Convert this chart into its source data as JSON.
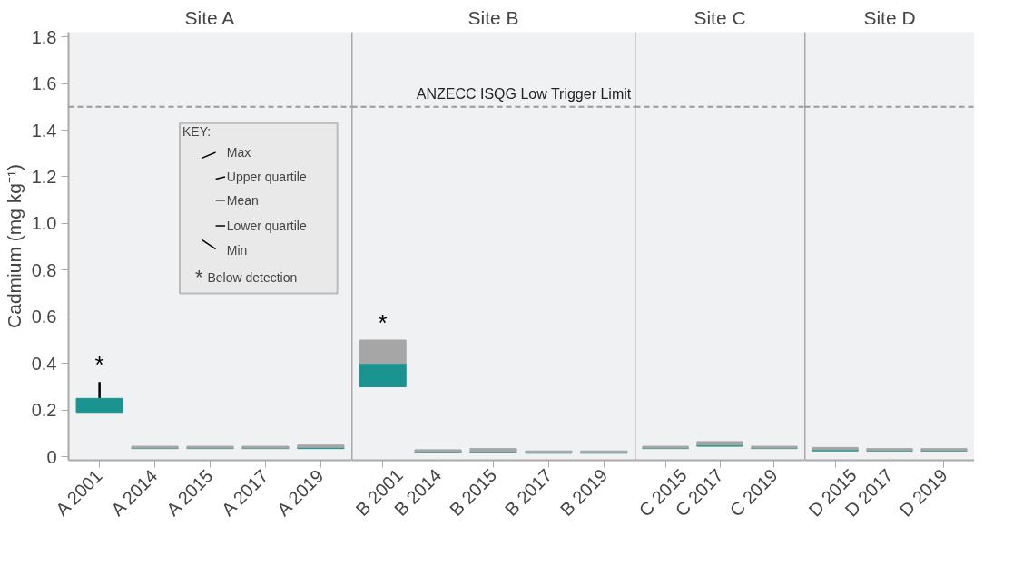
{
  "chart_data": [
    {
      "type": "box",
      "title": "Site A",
      "ylabel": "Cadmium (mg kg⁻¹)",
      "categories": [
        "A 2001",
        "A 2014",
        "A 2015",
        "A 2017",
        "A 2019"
      ],
      "color": "#a6a6a6",
      "series": [
        {
          "color": "#1b9490",
          "boxes": [
            {
              "low": 0.19,
              "q1": 0.19,
              "mean": 0.25,
              "q3": 0.25,
              "high": 0.32
            },
            {
              "low": 0.035,
              "q1": 0.035,
              "mean": 0.037,
              "q3": 0.045,
              "high": 0.045
            },
            {
              "low": 0.035,
              "q1": 0.035,
              "mean": 0.037,
              "q3": 0.045,
              "high": 0.045
            },
            {
              "low": 0.035,
              "q1": 0.035,
              "mean": 0.037,
              "q3": 0.045,
              "high": 0.045
            },
            {
              "low": 0.035,
              "q1": 0.035,
              "mean": 0.04,
              "q3": 0.05,
              "high": 0.05
            }
          ]
        }
      ],
      "ylim": [
        -0.015,
        1.82
      ],
      "yticks": [
        0,
        0.2,
        0.4,
        0.6,
        0.8,
        {
          "value": 1,
          "label": "1.0"
        },
        1.2,
        1.4,
        1.6,
        1.8
      ],
      "ref_lines": [
        {
          "axis": "y",
          "value": 1.5,
          "color": "#999999",
          "line_style": "dashed"
        }
      ],
      "annotations": [
        "*",
        "KEY:",
        "Max",
        "Upper quartile",
        "Mean",
        "Lower quartile",
        "Min",
        "*",
        "Below detection"
      ]
    },
    {
      "type": "box",
      "title": "Site B",
      "categories": [
        "B 2001",
        "B 2014",
        "B 2015",
        "B 2017",
        "B 2019"
      ],
      "color": "#a6a6a6",
      "series": [
        {
          "color": "#1b9490",
          "boxes": [
            {
              "low": 0.3,
              "q1": 0.3,
              "mean": 0.4,
              "q3": 0.5,
              "high": 0.5
            },
            {
              "low": 0.02,
              "q1": 0.02,
              "mean": 0.022,
              "q3": 0.03,
              "high": 0.03
            },
            {
              "low": 0.02,
              "q1": 0.02,
              "mean": 0.022,
              "q3": 0.035,
              "high": 0.035
            },
            {
              "low": 0.015,
              "q1": 0.015,
              "mean": 0.017,
              "q3": 0.025,
              "high": 0.025
            },
            {
              "low": 0.015,
              "q1": 0.015,
              "mean": 0.017,
              "q3": 0.025,
              "high": 0.025
            }
          ]
        }
      ],
      "ylim": [
        -0.015,
        1.82
      ],
      "tick_labels": "x",
      "ref_lines": [
        {
          "axis": "y",
          "value": 1.5,
          "label": "ANZECC ISQG Low Trigger Limit",
          "color": "#999999",
          "line_style": "dashed"
        }
      ],
      "annotations": [
        "*"
      ]
    },
    {
      "type": "box",
      "title": "Site C",
      "categories": [
        "C 2015",
        "C 2017",
        "C 2019"
      ],
      "color": "#a6a6a6",
      "series": [
        {
          "color": "#1b9490",
          "boxes": [
            {
              "low": 0.035,
              "q1": 0.035,
              "mean": 0.037,
              "q3": 0.045,
              "high": 0.045
            },
            {
              "low": 0.045,
              "q1": 0.045,
              "mean": 0.05,
              "q3": 0.065,
              "high": 0.065
            },
            {
              "low": 0.035,
              "q1": 0.035,
              "mean": 0.037,
              "q3": 0.045,
              "high": 0.045
            }
          ]
        }
      ],
      "ylim": [
        -0.015,
        1.82
      ],
      "tick_labels": "x",
      "ref_lines": [
        {
          "axis": "y",
          "value": 1.5,
          "color": "#999999",
          "line_style": "dashed"
        }
      ]
    },
    {
      "type": "box",
      "title": "Site D",
      "categories": [
        "D 2015",
        "D 2017",
        "D 2019"
      ],
      "color": "#a6a6a6",
      "series": [
        {
          "color": "#1b9490",
          "boxes": [
            {
              "low": 0.025,
              "q1": 0.025,
              "mean": 0.03,
              "q3": 0.04,
              "high": 0.04
            },
            {
              "low": 0.025,
              "q1": 0.025,
              "mean": 0.027,
              "q3": 0.035,
              "high": 0.035
            },
            {
              "low": 0.025,
              "q1": 0.025,
              "mean": 0.027,
              "q3": 0.035,
              "high": 0.035
            }
          ]
        }
      ],
      "ylim": [
        -0.015,
        1.82
      ],
      "tick_labels": "x",
      "ref_lines": [
        {
          "axis": "y",
          "value": 1.5,
          "color": "#999999",
          "line_style": "dashed"
        }
      ]
    }
  ]
}
